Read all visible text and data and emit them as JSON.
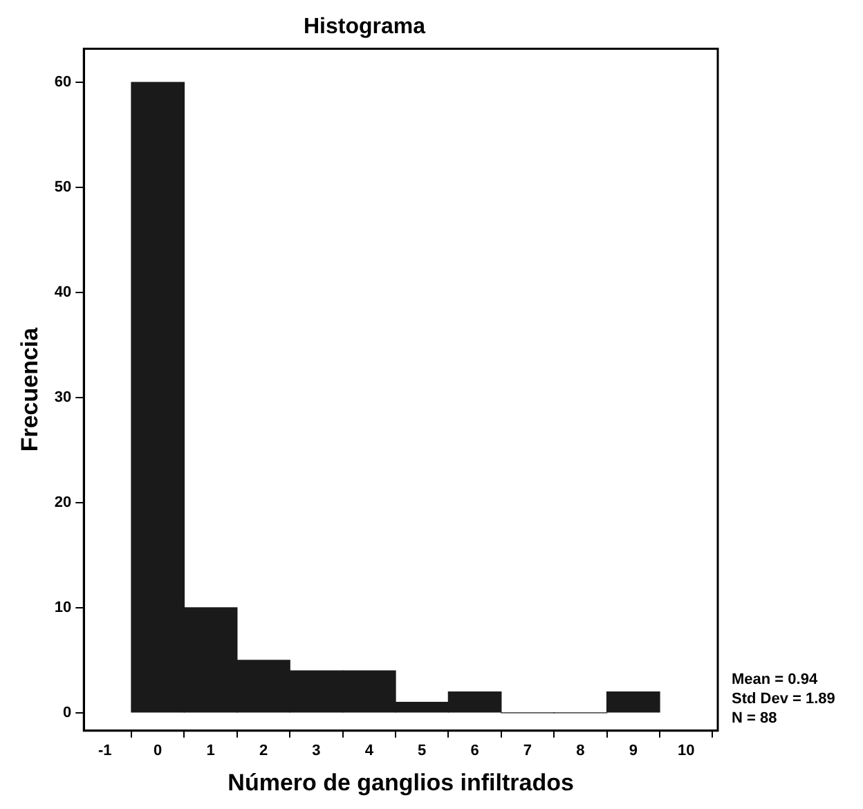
{
  "chart_data": {
    "type": "histogram",
    "title": "Histograma",
    "xlabel": "Número de ganglios infiltrados",
    "ylabel": "Frecuencia",
    "bins": [
      -0.5,
      0.5,
      1.5,
      2.5,
      3.5,
      4.5,
      5.5,
      6.5,
      7.5,
      8.5,
      9.5
    ],
    "values": [
      60,
      10,
      5,
      4,
      4,
      1,
      2,
      0,
      0,
      2
    ],
    "color": "#1a1a1a",
    "xlim": [
      -1.4,
      10.6
    ],
    "xticks": [
      -1,
      0,
      1,
      2,
      3,
      4,
      5,
      6,
      7,
      8,
      9,
      10
    ],
    "ylim": [
      -1.7,
      63.2
    ],
    "yticks": [
      0,
      10,
      20,
      30,
      40,
      50,
      60
    ],
    "grid": false,
    "legend": false,
    "annotations": [
      "Mean = 0.94",
      "Std Dev = 1.89",
      "N = 88"
    ]
  }
}
